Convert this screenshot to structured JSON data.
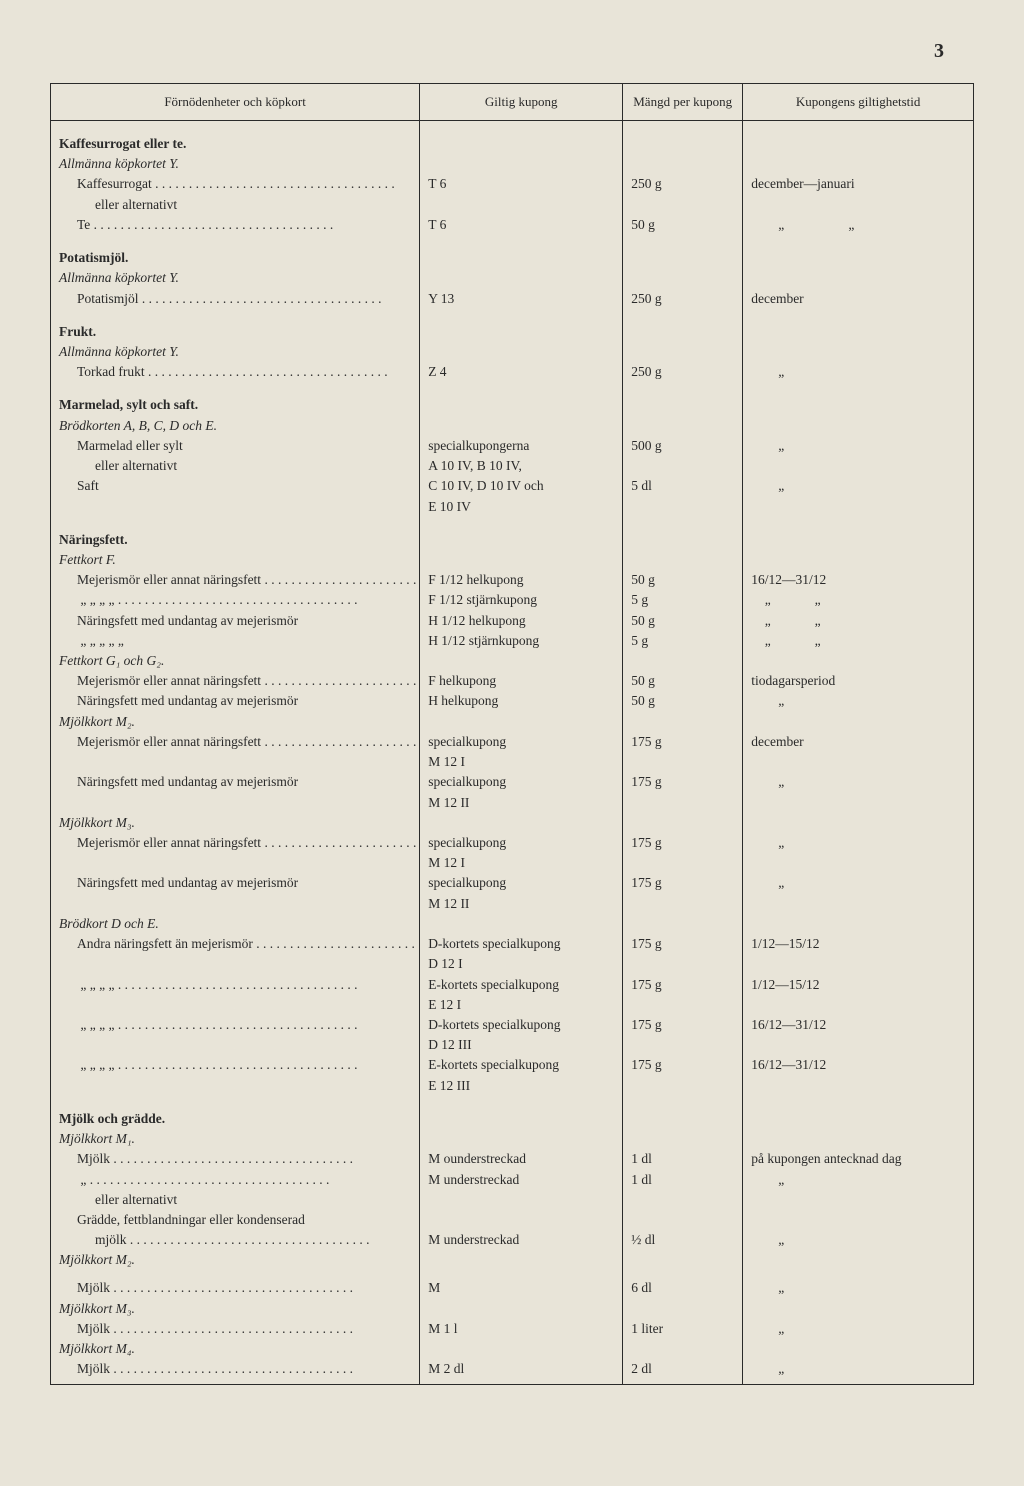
{
  "page_number": "3",
  "headers": {
    "col1": "Förnödenheter och köpkort",
    "col2": "Giltig kupong",
    "col3": "Mängd per kupong",
    "col4": "Kupongens giltighetstid"
  },
  "rows": [
    {
      "type": "section",
      "c1": "Kaffesurrogat eller te."
    },
    {
      "type": "sub",
      "c1": "Allmänna köpkortet Y."
    },
    {
      "type": "item",
      "c1": "Kaffesurrogat",
      "dots": true,
      "indent": 1,
      "c2": "T 6",
      "c3": "250 g",
      "c4": "december—januari"
    },
    {
      "type": "item",
      "c1": "eller alternativt",
      "indent": 2
    },
    {
      "type": "item",
      "c1": "Te",
      "dots": true,
      "indent": 1,
      "c2": "T 6",
      "c3": "50 g",
      "c4": "        „                   „"
    },
    {
      "type": "section",
      "c1": "Potatismjöl."
    },
    {
      "type": "sub",
      "c1": "Allmänna köpkortet Y."
    },
    {
      "type": "item",
      "c1": "Potatismjöl",
      "dots": true,
      "indent": 1,
      "c2": "Y 13",
      "c3": "250 g",
      "c4": "december"
    },
    {
      "type": "section",
      "c1": "Frukt."
    },
    {
      "type": "sub",
      "c1": "Allmänna köpkortet Y."
    },
    {
      "type": "item",
      "c1": "Torkad frukt",
      "dots": true,
      "indent": 1,
      "c2": "Z 4",
      "c3": "250 g",
      "c4": "        „"
    },
    {
      "type": "section",
      "c1": "Marmelad, sylt och saft."
    },
    {
      "type": "sub",
      "c1": "Brödkorten A, B, C, D och E."
    },
    {
      "type": "item",
      "c1": "Marmelad eller sylt",
      "indent": 1,
      "c2": "specialkupongerna",
      "c3": "500 g",
      "c4": "        „"
    },
    {
      "type": "item",
      "c1": "eller alternativt",
      "indent": 2,
      "c2": "A 10 IV, B 10 IV,"
    },
    {
      "type": "item",
      "c1": "Saft",
      "indent": 1,
      "c2": "C 10 IV, D 10 IV och",
      "c3": "5 dl",
      "c4": "        „"
    },
    {
      "type": "item",
      "c1": "",
      "c2": "E 10 IV"
    },
    {
      "type": "section",
      "c1": "Näringsfett."
    },
    {
      "type": "sub",
      "c1": "Fettkort F."
    },
    {
      "type": "item",
      "c1": "Mejerismör eller annat näringsfett",
      "dots": true,
      "indent": 1,
      "c2": "F 1/12 helkupong",
      "c3": "50 g",
      "c4": "16/12—31/12"
    },
    {
      "type": "item",
      "c1": "     „          „         „           „",
      "dots": true,
      "indent": 1,
      "c2": "F 1/12 stjärnkupong",
      "c3": "5 g",
      "c4": "    „             „"
    },
    {
      "type": "item",
      "c1": "Näringsfett med undantag av mejerismör",
      "indent": 1,
      "c2": "H 1/12 helkupong",
      "c3": "50 g",
      "c4": "    „             „"
    },
    {
      "type": "item",
      "c1": "     „          „         „           „            „",
      "indent": 1,
      "c2": "H 1/12 stjärnkupong",
      "c3": "5 g",
      "c4": "    „             „"
    },
    {
      "type": "sub",
      "c1": "Fettkort G₁ och G₂."
    },
    {
      "type": "item",
      "c1": "Mejerismör eller annat näringsfett",
      "dots": true,
      "indent": 1,
      "c2": "F helkupong",
      "c3": "50 g",
      "c4": "tiodagarsperiod"
    },
    {
      "type": "item",
      "c1": "Näringsfett med undantag av mejerismör",
      "indent": 1,
      "c2": "H helkupong",
      "c3": "50 g",
      "c4": "        „"
    },
    {
      "type": "sub",
      "c1": "Mjölkkort M₂."
    },
    {
      "type": "item",
      "c1": "Mejerismör eller annat näringsfett",
      "dots": true,
      "indent": 1,
      "c2": "specialkupong",
      "c3": "175 g",
      "c4": "december"
    },
    {
      "type": "item",
      "c1": "",
      "c2": "M 12 I"
    },
    {
      "type": "item",
      "c1": "Näringsfett med undantag av mejerismör",
      "indent": 1,
      "c2": "specialkupong",
      "c3": "175 g",
      "c4": "        „"
    },
    {
      "type": "item",
      "c1": "",
      "c2": "M 12 II"
    },
    {
      "type": "sub",
      "c1": "Mjölkkort M₃."
    },
    {
      "type": "item",
      "c1": "Mejerismör eller annat näringsfett",
      "dots": true,
      "indent": 1,
      "c2": "specialkupong",
      "c3": "175 g",
      "c4": "        „"
    },
    {
      "type": "item",
      "c1": "",
      "c2": "M 12 I"
    },
    {
      "type": "item",
      "c1": "Näringsfett med undantag av mejerismör",
      "indent": 1,
      "c2": "specialkupong",
      "c3": "175 g",
      "c4": "        „"
    },
    {
      "type": "item",
      "c1": "",
      "c2": "M 12 II"
    },
    {
      "type": "sub",
      "c1": "Brödkort D och E."
    },
    {
      "type": "item",
      "c1": "Andra näringsfett än mejerismör",
      "dots": true,
      "indent": 1,
      "c2": "D-kortets specialkupong",
      "c3": "175 g",
      "c4": "1/12—15/12"
    },
    {
      "type": "item",
      "c1": "",
      "c2": "D 12 I"
    },
    {
      "type": "item",
      "c1": "     „          „         „           „",
      "dots": true,
      "indent": 1,
      "c2": "E-kortets specialkupong",
      "c3": "175 g",
      "c4": "1/12—15/12"
    },
    {
      "type": "item",
      "c1": "",
      "c2": "E 12 I"
    },
    {
      "type": "item",
      "c1": "     „          „         „           „",
      "dots": true,
      "indent": 1,
      "c2": "D-kortets specialkupong",
      "c3": "175 g",
      "c4": "16/12—31/12"
    },
    {
      "type": "item",
      "c1": "",
      "c2": "D 12 III"
    },
    {
      "type": "item",
      "c1": "     „          „         „           „",
      "dots": true,
      "indent": 1,
      "c2": "E-kortets specialkupong",
      "c3": "175 g",
      "c4": "16/12—31/12"
    },
    {
      "type": "item",
      "c1": "",
      "c2": "E 12 III"
    },
    {
      "type": "section",
      "c1": "Mjölk och grädde."
    },
    {
      "type": "sub",
      "c1": "Mjölkkort M₁."
    },
    {
      "type": "item",
      "c1": "Mjölk",
      "dots": true,
      "indent": 1,
      "c2": "M ounderstreckad",
      "c3": "1 dl",
      "c4": "på kupongen antecknad dag"
    },
    {
      "type": "item",
      "c1": "   „",
      "dots": true,
      "indent": 1,
      "c2": "M understreckad",
      "c3": "1 dl",
      "c4": "        „"
    },
    {
      "type": "item",
      "c1": "eller alternativt",
      "indent": 2
    },
    {
      "type": "item",
      "c1": "Grädde, fettblandningar eller kondenserad",
      "indent": 1
    },
    {
      "type": "item",
      "c1": "mjölk",
      "dots": true,
      "indent": 2,
      "c2": "M understreckad",
      "c3": "½ dl",
      "c4": "        „"
    },
    {
      "type": "sub",
      "c1": "Mjölkkort M₂.",
      "pad": true
    },
    {
      "type": "item",
      "c1": "Mjölk",
      "dots": true,
      "indent": 1,
      "c2": "M",
      "c3": "6 dl",
      "c4": "        „"
    },
    {
      "type": "sub",
      "c1": "Mjölkkort M₃."
    },
    {
      "type": "item",
      "c1": "Mjölk",
      "dots": true,
      "indent": 1,
      "c2": "M 1 l",
      "c3": "1 liter",
      "c4": "        „"
    },
    {
      "type": "sub",
      "c1": "Mjölkkort M₄."
    },
    {
      "type": "item",
      "c1": "Mjölk",
      "dots": true,
      "indent": 1,
      "c2": "M 2 dl",
      "c3": "2 dl",
      "c4": "        „",
      "last": true
    }
  ]
}
